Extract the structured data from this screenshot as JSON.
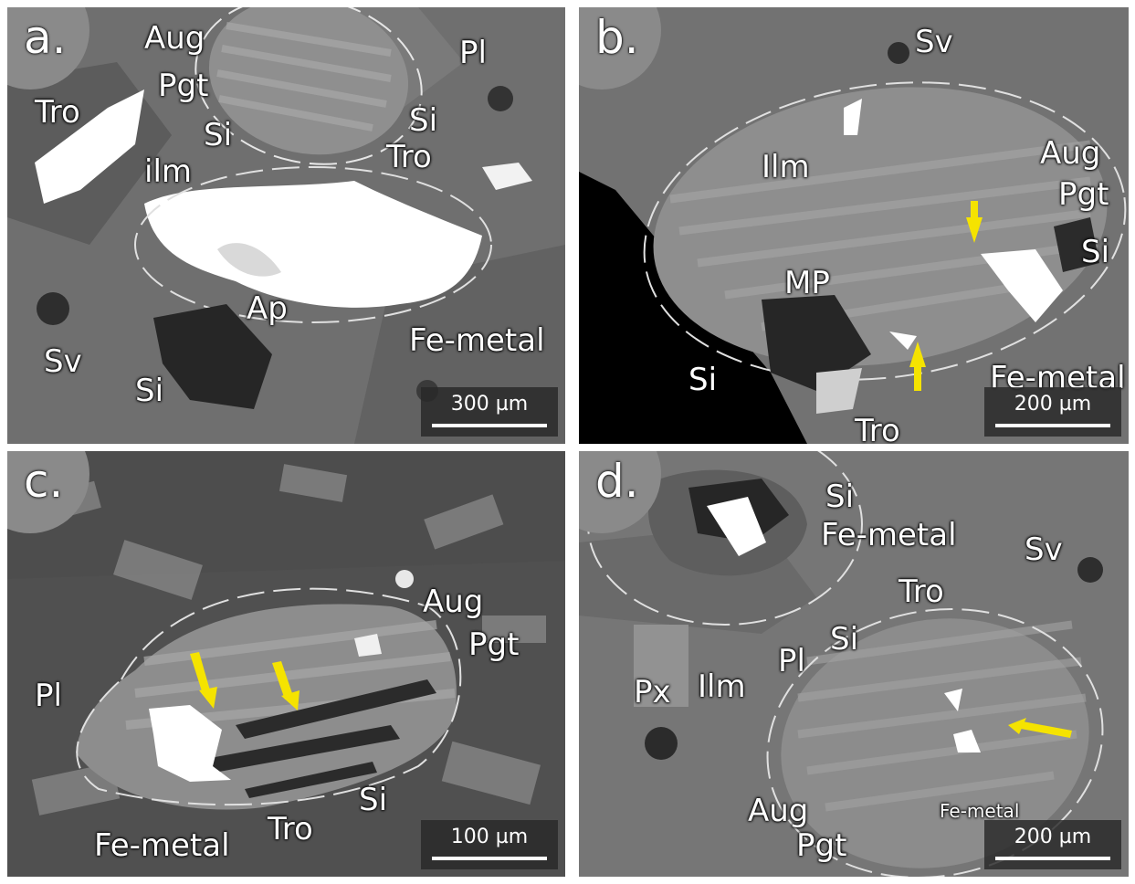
{
  "panels": [
    {
      "id": "a",
      "label": "a.",
      "scale": "300 µm",
      "labels": [
        "Aug",
        "Pgt",
        "Pl",
        "Tro",
        "Si",
        "Tro",
        "Si",
        "ilm",
        "Ap",
        "Fe-metal",
        "Sv",
        "Si"
      ]
    },
    {
      "id": "b",
      "label": "b.",
      "scale": "200 µm",
      "labels": [
        "Sv",
        "Ilm",
        "Aug",
        "Pgt",
        "Si",
        "MP",
        "Si",
        "Fe-metal",
        "Tro"
      ]
    },
    {
      "id": "c",
      "label": "c.",
      "scale": "100 µm",
      "labels": [
        "Aug",
        "Pgt",
        "Pl",
        "Si",
        "Tro",
        "Fe-metal"
      ]
    },
    {
      "id": "d",
      "label": "d.",
      "scale": "200 µm",
      "labels": [
        "Si",
        "Fe-metal",
        "Sv",
        "Tro",
        "Si",
        "Pl",
        "Px",
        "Ilm",
        "Aug",
        "Pgt",
        "Fe-metal"
      ]
    }
  ],
  "colors": {
    "arrow": "#f5e300",
    "metal": "#ffffff",
    "silica": "#2a2a2a",
    "pyroxene": "#9a9a9a"
  }
}
